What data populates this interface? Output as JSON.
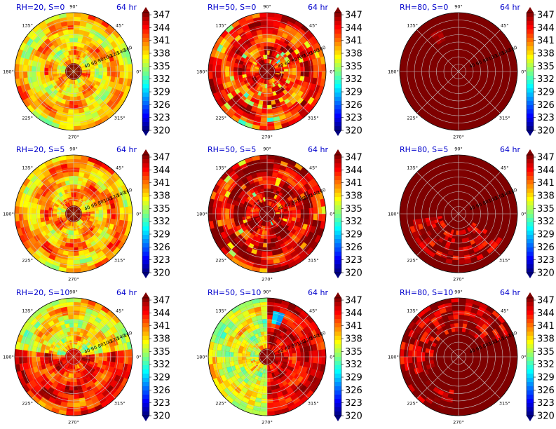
{
  "figure": {
    "colormap": [
      "#00007f",
      "#0000ff",
      "#007fff",
      "#00ffff",
      "#7fff7f",
      "#ffff00",
      "#ff7f00",
      "#ff0000",
      "#7f0000"
    ],
    "colorbar_ticks": [
      "347",
      "344",
      "341",
      "338",
      "335",
      "332",
      "329",
      "326",
      "323",
      "320"
    ],
    "angle_labels": [
      "90°",
      "45°",
      "0°",
      "315°",
      "270°",
      "225°",
      "180°",
      "135°"
    ],
    "radial_labels": [
      "40",
      "60",
      "80",
      "100",
      "120",
      "140",
      "160"
    ],
    "grid_color": "#c8c8c8"
  },
  "chart_data": [
    {
      "type": "heatmap",
      "projection": "polar",
      "title_left": "RH=20, S=0",
      "title_right": "64 hr",
      "vmin": 320,
      "vmax": 347,
      "colorbar_ticks": [
        347,
        344,
        341,
        338,
        335,
        332,
        329,
        326,
        323,
        320
      ],
      "radial_ticks": [
        40,
        60,
        80,
        100,
        120,
        140,
        160
      ],
      "field": "mixed",
      "base_value": 338,
      "core_value": 348,
      "pattern": "spiral bands, greens/yellows/oranges, dark red core"
    },
    {
      "type": "heatmap",
      "projection": "polar",
      "title_left": "RH=50, S=0",
      "title_right": "64 hr",
      "vmin": 320,
      "vmax": 347,
      "colorbar_ticks": [
        347,
        344,
        341,
        338,
        335,
        332,
        329,
        326,
        323,
        320
      ],
      "radial_ticks": [
        40,
        60,
        80,
        100,
        120,
        140,
        160
      ],
      "field": "warm",
      "base_value": 343,
      "core_value": 348,
      "pattern": "mostly red/orange with yellow and cyan streaks"
    },
    {
      "type": "heatmap",
      "projection": "polar",
      "title_left": "RH=80, S=0",
      "title_right": "64 hr",
      "vmin": 320,
      "vmax": 347,
      "colorbar_ticks": [
        347,
        344,
        341,
        338,
        335,
        332,
        329,
        326,
        323,
        320
      ],
      "radial_ticks": [
        40,
        60,
        80,
        100,
        120,
        140,
        160
      ],
      "field": "saturated",
      "base_value": 348,
      "core_value": 348,
      "pattern": "almost entirely dark red, small red patch near 120°"
    },
    {
      "type": "heatmap",
      "projection": "polar",
      "title_left": "RH=20, S=5",
      "title_right": "64 hr",
      "vmin": 320,
      "vmax": 347,
      "colorbar_ticks": [
        347,
        344,
        341,
        338,
        335,
        332,
        329,
        326,
        323,
        320
      ],
      "radial_ticks": [
        40,
        60,
        80,
        100,
        120,
        140,
        160
      ],
      "field": "mixed",
      "base_value": 339,
      "core_value": 348,
      "pattern": "spiral bands, yellow/orange, dark red core"
    },
    {
      "type": "heatmap",
      "projection": "polar",
      "title_left": "RH=50, S=5",
      "title_right": "64 hr",
      "vmin": 320,
      "vmax": 347,
      "colorbar_ticks": [
        347,
        344,
        341,
        338,
        335,
        332,
        329,
        326,
        323,
        320
      ],
      "radial_ticks": [
        40,
        60,
        80,
        100,
        120,
        140,
        160
      ],
      "field": "warm",
      "base_value": 345,
      "core_value": 348,
      "pattern": "red dominant with scattered cyan/yellow cells"
    },
    {
      "type": "heatmap",
      "projection": "polar",
      "title_left": "RH=80, S=5",
      "title_right": "64 hr",
      "vmin": 320,
      "vmax": 347,
      "colorbar_ticks": [
        347,
        344,
        341,
        338,
        335,
        332,
        329,
        326,
        323,
        320
      ],
      "radial_ticks": [
        40,
        60,
        80,
        100,
        120,
        140,
        160
      ],
      "field": "saturated",
      "base_value": 348,
      "core_value": 348,
      "pattern": "dark red with red/orange patches in lower half"
    },
    {
      "type": "heatmap",
      "projection": "polar",
      "title_left": "RH=20, S=10",
      "title_right": "64 hr",
      "vmin": 320,
      "vmax": 347,
      "colorbar_ticks": [
        347,
        344,
        341,
        338,
        335,
        332,
        329,
        326,
        323,
        320
      ],
      "radial_ticks": [
        40,
        60,
        80,
        100,
        120,
        140,
        160
      ],
      "field": "mixed",
      "base_value": 340,
      "core_value": 345,
      "pattern": "yellow/green top, orange/red lower half"
    },
    {
      "type": "heatmap",
      "projection": "polar",
      "title_left": "RH=50, S=10",
      "title_right": "64 hr",
      "vmin": 320,
      "vmax": 347,
      "colorbar_ticks": [
        347,
        344,
        341,
        338,
        335,
        332,
        329,
        326,
        323,
        320
      ],
      "radial_ticks": [
        40,
        60,
        80,
        100,
        120,
        140,
        160
      ],
      "field": "split",
      "base_value": 343,
      "core_value": 347,
      "pattern": "cyan/green left half, red right half, blue spot near 75°"
    },
    {
      "type": "heatmap",
      "projection": "polar",
      "title_left": "RH=80, S=10",
      "title_right": "64 hr",
      "vmin": 320,
      "vmax": 347,
      "colorbar_ticks": [
        347,
        344,
        341,
        338,
        335,
        332,
        329,
        326,
        323,
        320
      ],
      "radial_ticks": [
        40,
        60,
        80,
        100,
        120,
        140,
        160
      ],
      "field": "saturated",
      "base_value": 347,
      "core_value": 348,
      "pattern": "dark red with red/orange arc in upper half"
    }
  ]
}
